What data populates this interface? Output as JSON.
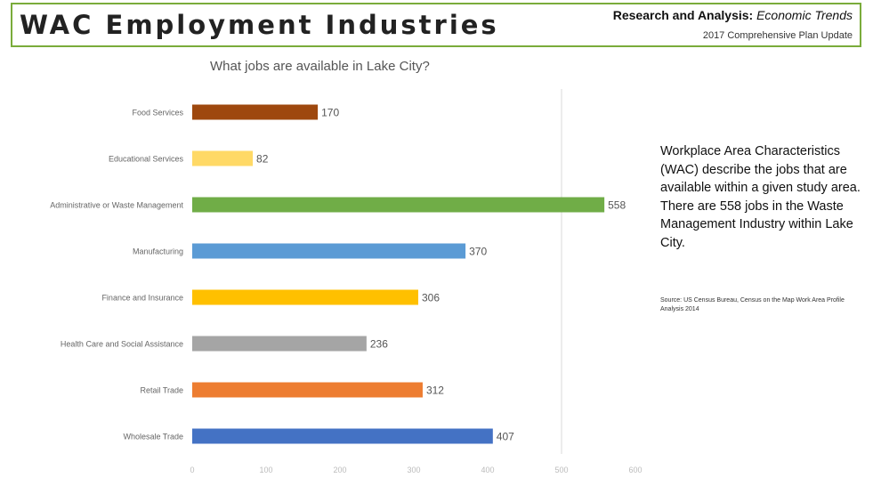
{
  "header": {
    "title": "WAC Employment Industries",
    "section_label": "Research and Analysis",
    "section_separator": ":",
    "section_topic": "Economic Trends",
    "subtitle": "2017 Comprehensive Plan Update",
    "border_color": "#7aac3b"
  },
  "side_note": {
    "text": "Workplace Area Characteristics (WAC) describe the jobs that are available within a given study area.  There are 558 jobs in the Waste Management Industry within Lake City.",
    "source": "Source: US Census Bureau, Census on the Map Work Area Profile Analysis 2014"
  },
  "chart_data": {
    "type": "bar",
    "orientation": "horizontal",
    "title": "What jobs are available in Lake City?",
    "xlabel": "",
    "ylabel": "",
    "xlim": [
      0,
      600
    ],
    "x_ticks": [
      0,
      100,
      200,
      300,
      400,
      500,
      600
    ],
    "grid": false,
    "reference_line_at": 500,
    "categories": [
      "Food Services",
      "Educational Services",
      "Administrative or Waste Management",
      "Manufacturing",
      "Finance and Insurance",
      "Health Care and Social Assistance",
      "Retail Trade",
      "Wholesale Trade"
    ],
    "values": [
      170,
      82,
      558,
      370,
      306,
      236,
      312,
      407
    ],
    "colors": [
      "#9e480e",
      "#ffd966",
      "#70ad47",
      "#5b9bd5",
      "#ffc000",
      "#a5a5a5",
      "#ed7d31",
      "#4472c4"
    ]
  }
}
